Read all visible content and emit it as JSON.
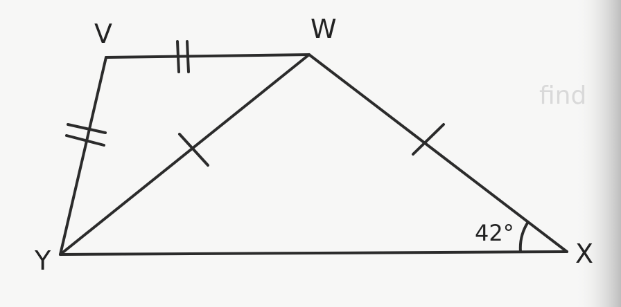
{
  "figure": {
    "vertices": {
      "V": "V",
      "W": "W",
      "X": "X",
      "Y": "Y"
    },
    "angle_label": "42°",
    "bleed_through_text": "find",
    "colors": {
      "ink": "#2b2b2b",
      "paper": "#f7f7f6",
      "edge_shadow": "#c8c8c8"
    }
  }
}
